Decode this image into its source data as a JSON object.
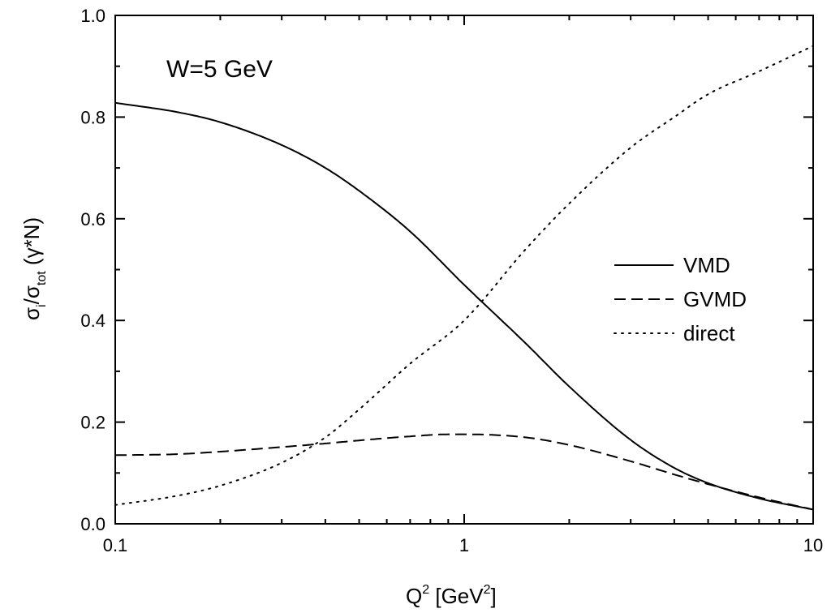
{
  "chart_data": {
    "type": "line",
    "xscale": "log",
    "xlim": [
      0.1,
      10
    ],
    "ylim": [
      0.0,
      1.0
    ],
    "xlabel": {
      "base": "Q",
      "sup1": "2",
      "mid": " [GeV",
      "sup2": "2",
      "end": "]"
    },
    "ylabel": {
      "s1": "σ",
      "sub1": "i",
      "slash": "/",
      "s2": "σ",
      "sub2": "tot",
      "end": " (γ*N)"
    },
    "annotation": "W=5 GeV",
    "legend_position": "right",
    "x_ticks": [
      {
        "value": 0.1,
        "label": "0.1"
      },
      {
        "value": 1,
        "label": "1"
      },
      {
        "value": 10,
        "label": "10"
      }
    ],
    "y_ticks": [
      {
        "value": 0.0,
        "label": "0.0"
      },
      {
        "value": 0.2,
        "label": "0.2"
      },
      {
        "value": 0.4,
        "label": "0.4"
      },
      {
        "value": 0.6,
        "label": "0.6"
      },
      {
        "value": 0.8,
        "label": "0.8"
      },
      {
        "value": 1.0,
        "label": "1.0"
      }
    ],
    "series": [
      {
        "name": "VMD",
        "style": "solid",
        "x": [
          0.1,
          0.15,
          0.2,
          0.3,
          0.4,
          0.5,
          0.7,
          1.0,
          1.5,
          2.0,
          3.0,
          4.0,
          5.0,
          7.0,
          10.0
        ],
        "y": [
          0.828,
          0.81,
          0.79,
          0.745,
          0.7,
          0.655,
          0.575,
          0.47,
          0.355,
          0.27,
          0.165,
          0.11,
          0.08,
          0.05,
          0.028
        ]
      },
      {
        "name": "GVMD",
        "style": "dashed",
        "x": [
          0.1,
          0.15,
          0.2,
          0.3,
          0.4,
          0.5,
          0.7,
          0.9,
          1.0,
          1.5,
          2.0,
          3.0,
          4.0,
          5.0,
          7.0,
          10.0
        ],
        "y": [
          0.135,
          0.137,
          0.142,
          0.151,
          0.158,
          0.164,
          0.172,
          0.176,
          0.176,
          0.17,
          0.155,
          0.123,
          0.097,
          0.078,
          0.052,
          0.028
        ]
      },
      {
        "name": "direct",
        "style": "dotted",
        "x": [
          0.1,
          0.15,
          0.2,
          0.3,
          0.4,
          0.5,
          0.7,
          1.0,
          1.5,
          2.0,
          3.0,
          4.0,
          5.0,
          7.0,
          10.0
        ],
        "y": [
          0.037,
          0.055,
          0.075,
          0.12,
          0.17,
          0.225,
          0.315,
          0.4,
          0.54,
          0.63,
          0.74,
          0.8,
          0.845,
          0.89,
          0.94
        ]
      }
    ]
  }
}
